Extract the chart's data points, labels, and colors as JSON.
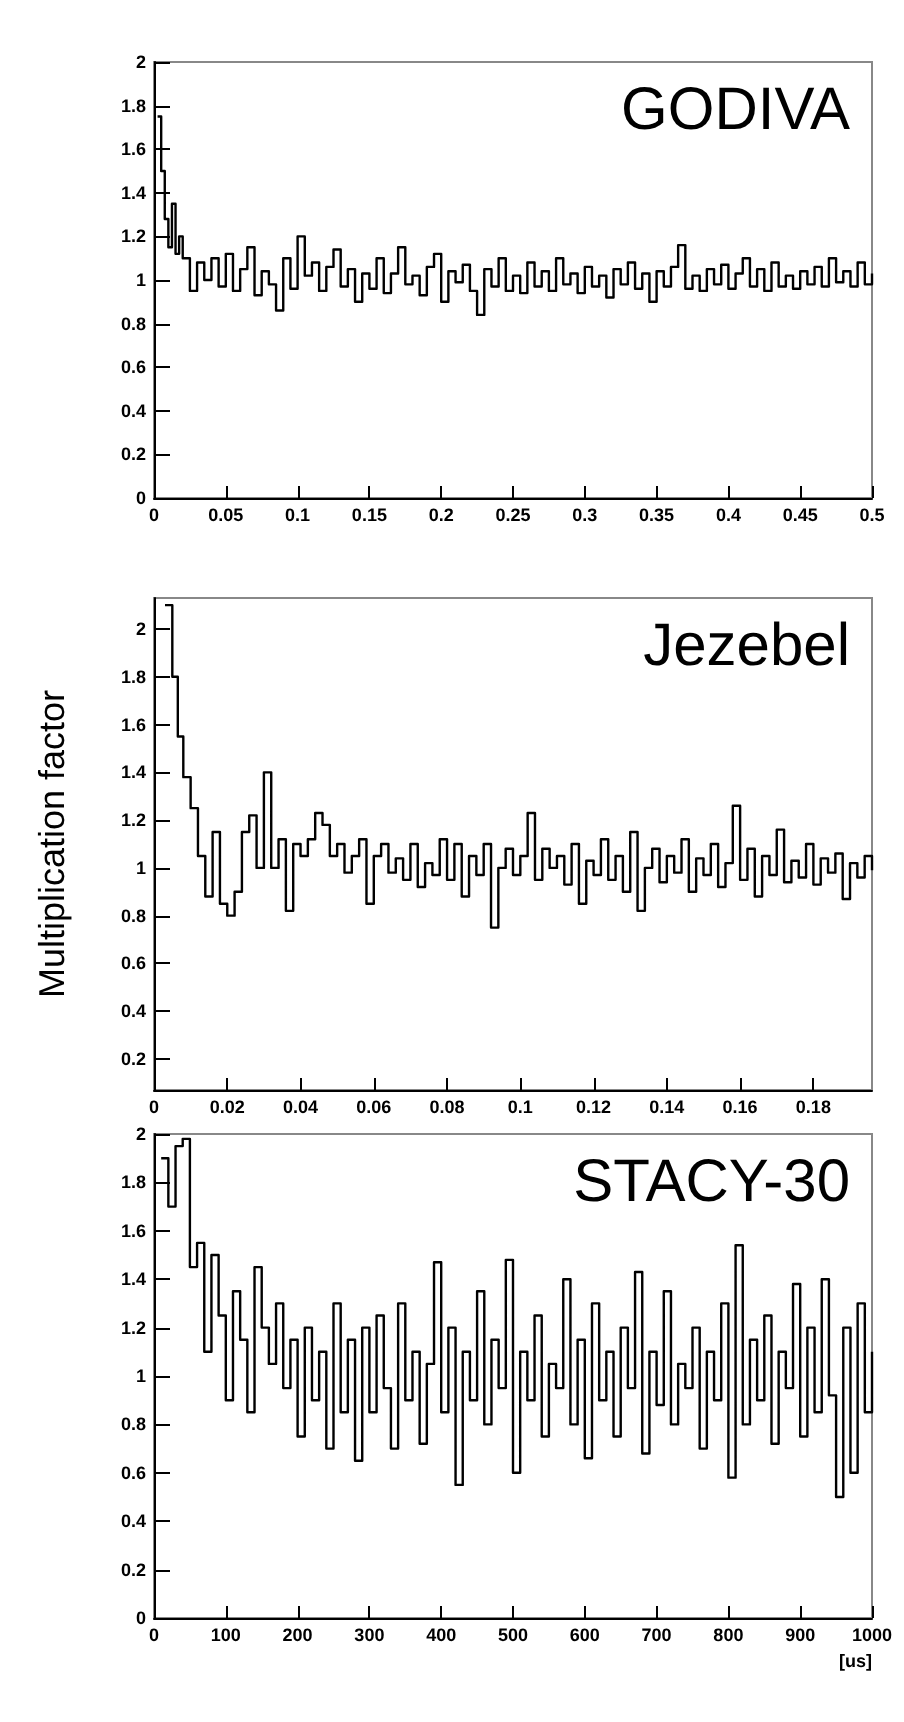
{
  "chart_data": [
    {
      "type": "step",
      "title": "GODIVA",
      "xlim": [
        0,
        0.5
      ],
      "xticks": [
        0,
        0.05,
        0.1,
        0.15,
        0.2,
        0.25,
        0.3,
        0.35,
        0.4,
        0.45,
        0.5
      ],
      "ylim": [
        0,
        2
      ],
      "yticks": [
        0,
        0.2,
        0.4,
        0.6,
        0.8,
        1,
        1.2,
        1.4,
        1.6,
        1.8,
        2
      ],
      "x": [
        0.0025,
        0.005,
        0.0075,
        0.01,
        0.0125,
        0.015,
        0.0175,
        0.02,
        0.025,
        0.03,
        0.035,
        0.04,
        0.045,
        0.05,
        0.055,
        0.06,
        0.065,
        0.07,
        0.075,
        0.08,
        0.085,
        0.09,
        0.095,
        0.1,
        0.105,
        0.11,
        0.115,
        0.12,
        0.125,
        0.13,
        0.135,
        0.14,
        0.145,
        0.15,
        0.155,
        0.16,
        0.165,
        0.17,
        0.175,
        0.18,
        0.185,
        0.19,
        0.195,
        0.2,
        0.205,
        0.21,
        0.215,
        0.22,
        0.225,
        0.23,
        0.235,
        0.24,
        0.245,
        0.25,
        0.255,
        0.26,
        0.265,
        0.27,
        0.275,
        0.28,
        0.285,
        0.29,
        0.295,
        0.3,
        0.305,
        0.31,
        0.315,
        0.32,
        0.325,
        0.33,
        0.335,
        0.34,
        0.345,
        0.35,
        0.355,
        0.36,
        0.365,
        0.37,
        0.375,
        0.38,
        0.385,
        0.39,
        0.395,
        0.4,
        0.405,
        0.41,
        0.415,
        0.42,
        0.425,
        0.43,
        0.435,
        0.44,
        0.445,
        0.45,
        0.455,
        0.46,
        0.465,
        0.47,
        0.475,
        0.48,
        0.485,
        0.49,
        0.495,
        0.5
      ],
      "series": [
        {
          "color": "#000000",
          "values": [
            1.75,
            1.5,
            1.28,
            1.15,
            1.35,
            1.12,
            1.2,
            1.1,
            0.95,
            1.08,
            1.0,
            1.1,
            0.97,
            1.12,
            0.95,
            1.05,
            1.15,
            0.93,
            1.04,
            0.98,
            0.86,
            1.1,
            0.96,
            1.2,
            1.02,
            1.08,
            0.95,
            1.06,
            1.14,
            0.97,
            1.05,
            0.9,
            1.03,
            0.96,
            1.1,
            0.94,
            1.03,
            1.15,
            0.98,
            1.02,
            0.93,
            1.06,
            1.12,
            0.9,
            1.04,
            0.99,
            1.07,
            0.95,
            0.84,
            1.05,
            0.97,
            1.1,
            0.95,
            1.02,
            0.94,
            1.08,
            0.97,
            1.04,
            0.95,
            1.1,
            0.98,
            1.03,
            0.94,
            1.06,
            0.97,
            1.02,
            0.92,
            1.05,
            0.98,
            1.08,
            0.96,
            1.03,
            0.9,
            1.04,
            0.97,
            1.06,
            1.16,
            0.96,
            1.02,
            0.95,
            1.05,
            0.98,
            1.07,
            0.96,
            1.03,
            1.1,
            0.97,
            1.05,
            0.95,
            1.08,
            0.97,
            1.02,
            0.96,
            1.04,
            0.98,
            1.06,
            0.97,
            1.1,
            0.99,
            1.04,
            0.97,
            1.08,
            0.98,
            1.03
          ]
        }
      ]
    },
    {
      "type": "step",
      "title": "Jezebel",
      "ylabel": "Multiplication factor",
      "xlim": [
        0,
        0.196
      ],
      "xticks": [
        0,
        0.02,
        0.04,
        0.06,
        0.08,
        0.1,
        0.12,
        0.14,
        0.16,
        0.18
      ],
      "ylim": [
        0.07,
        2.13
      ],
      "yticks": [
        0.2,
        0.4,
        0.6,
        0.8,
        1,
        1.2,
        1.4,
        1.6,
        1.8,
        2
      ],
      "x": [
        0.003,
        0.005,
        0.0065,
        0.008,
        0.01,
        0.012,
        0.014,
        0.016,
        0.018,
        0.02,
        0.022,
        0.024,
        0.026,
        0.028,
        0.03,
        0.032,
        0.034,
        0.036,
        0.038,
        0.04,
        0.042,
        0.044,
        0.046,
        0.048,
        0.05,
        0.052,
        0.054,
        0.056,
        0.058,
        0.06,
        0.062,
        0.064,
        0.066,
        0.068,
        0.07,
        0.072,
        0.074,
        0.076,
        0.078,
        0.08,
        0.082,
        0.084,
        0.086,
        0.088,
        0.09,
        0.092,
        0.094,
        0.096,
        0.098,
        0.1,
        0.102,
        0.104,
        0.106,
        0.108,
        0.11,
        0.112,
        0.114,
        0.116,
        0.118,
        0.12,
        0.122,
        0.124,
        0.126,
        0.128,
        0.13,
        0.132,
        0.134,
        0.136,
        0.138,
        0.14,
        0.142,
        0.144,
        0.146,
        0.148,
        0.15,
        0.152,
        0.154,
        0.156,
        0.158,
        0.16,
        0.162,
        0.164,
        0.166,
        0.168,
        0.17,
        0.172,
        0.174,
        0.176,
        0.178,
        0.18,
        0.182,
        0.184,
        0.186,
        0.188,
        0.19,
        0.192,
        0.194,
        0.196
      ],
      "series": [
        {
          "color": "#000000",
          "values": [
            2.1,
            1.8,
            1.55,
            1.38,
            1.25,
            1.05,
            0.88,
            1.15,
            0.85,
            0.8,
            0.9,
            1.15,
            1.22,
            1.0,
            1.4,
            1.0,
            1.12,
            0.82,
            1.1,
            1.05,
            1.12,
            1.23,
            1.18,
            1.05,
            1.1,
            0.98,
            1.05,
            1.12,
            0.85,
            1.05,
            1.1,
            0.98,
            1.04,
            0.95,
            1.1,
            0.92,
            1.02,
            0.97,
            1.12,
            0.95,
            1.1,
            0.88,
            1.05,
            0.97,
            1.1,
            0.75,
            1.0,
            1.08,
            0.97,
            1.05,
            1.23,
            0.95,
            1.08,
            1.0,
            1.05,
            0.93,
            1.1,
            0.85,
            1.03,
            0.97,
            1.12,
            0.95,
            1.05,
            0.9,
            1.15,
            0.82,
            1.0,
            1.08,
            0.94,
            1.05,
            0.98,
            1.12,
            0.9,
            1.04,
            0.97,
            1.1,
            0.92,
            1.02,
            1.26,
            0.95,
            1.08,
            0.88,
            1.05,
            0.97,
            1.16,
            0.94,
            1.03,
            0.96,
            1.1,
            0.93,
            1.04,
            0.98,
            1.06,
            0.87,
            1.02,
            0.96,
            1.05,
            0.99
          ]
        }
      ]
    },
    {
      "type": "step",
      "title": "STACY-30",
      "xlabel": "[us]",
      "xlim": [
        0,
        1000
      ],
      "xticks": [
        0,
        100,
        200,
        300,
        400,
        500,
        600,
        700,
        800,
        900,
        1000
      ],
      "ylim": [
        0,
        2
      ],
      "yticks": [
        0,
        0.2,
        0.4,
        0.6,
        0.8,
        1,
        1.2,
        1.4,
        1.6,
        1.8,
        2
      ],
      "x": [
        10,
        20,
        30,
        40,
        50,
        60,
        70,
        80,
        90,
        100,
        110,
        120,
        130,
        140,
        150,
        160,
        170,
        180,
        190,
        200,
        210,
        220,
        230,
        240,
        250,
        260,
        270,
        280,
        290,
        300,
        310,
        320,
        330,
        340,
        350,
        360,
        370,
        380,
        390,
        400,
        410,
        420,
        430,
        440,
        450,
        460,
        470,
        480,
        490,
        500,
        510,
        520,
        530,
        540,
        550,
        560,
        570,
        580,
        590,
        600,
        610,
        620,
        630,
        640,
        650,
        660,
        670,
        680,
        690,
        700,
        710,
        720,
        730,
        740,
        750,
        760,
        770,
        780,
        790,
        800,
        810,
        820,
        830,
        840,
        850,
        860,
        870,
        880,
        890,
        900,
        910,
        920,
        930,
        940,
        950,
        960,
        970,
        980,
        990,
        1000
      ],
      "series": [
        {
          "color": "#000000",
          "values": [
            1.9,
            1.7,
            1.95,
            1.98,
            1.45,
            1.55,
            1.1,
            1.5,
            1.25,
            0.9,
            1.35,
            1.15,
            0.85,
            1.45,
            1.2,
            1.05,
            1.3,
            0.95,
            1.15,
            0.75,
            1.2,
            0.9,
            1.1,
            0.7,
            1.3,
            0.85,
            1.15,
            0.65,
            1.2,
            0.85,
            1.25,
            0.95,
            0.7,
            1.3,
            0.9,
            1.1,
            0.72,
            1.05,
            1.47,
            0.85,
            1.2,
            0.55,
            1.1,
            0.9,
            1.35,
            0.8,
            1.15,
            0.95,
            1.48,
            0.6,
            1.1,
            0.9,
            1.25,
            0.75,
            1.05,
            0.95,
            1.4,
            0.8,
            1.15,
            0.66,
            1.3,
            0.9,
            1.1,
            0.75,
            1.2,
            0.95,
            1.43,
            0.68,
            1.1,
            0.88,
            1.35,
            0.8,
            1.05,
            0.95,
            1.2,
            0.7,
            1.1,
            0.9,
            1.3,
            0.58,
            1.54,
            0.8,
            1.15,
            0.9,
            1.25,
            0.72,
            1.1,
            0.95,
            1.38,
            0.75,
            1.2,
            0.85,
            1.4,
            0.92,
            0.5,
            1.2,
            0.6,
            1.3,
            0.85,
            1.1
          ]
        }
      ]
    }
  ]
}
